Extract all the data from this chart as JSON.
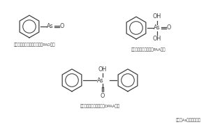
{
  "bg_color": "#ffffff",
  "line_color": "#404040",
  "label_pao": "フェニルアルシンオキシド（PAO　）",
  "label_paa": "フェニルアルソン酸（PAA　）",
  "label_dpaa": "ジフェニルアルシン酸（DPAA　）",
  "note": "（注）Asはヒ素を表す",
  "ring_r": 16,
  "lw": 0.9
}
